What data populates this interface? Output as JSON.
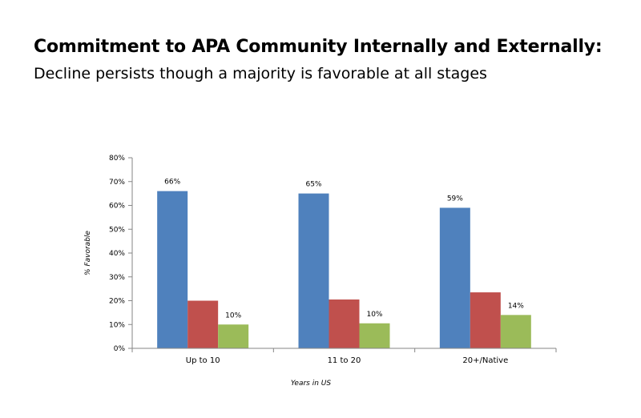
{
  "title": "Commitment to APA Community Internally and Externally:",
  "subtitle": "Decline persists though a majority is favorable at all stages",
  "chart_data": {
    "type": "bar",
    "categories": [
      "Up to 10",
      "11 to 20",
      "20+/Native"
    ],
    "series": [
      {
        "color": "#4f81bd",
        "values": [
          66,
          65,
          59
        ],
        "labels": [
          "66%",
          "65%",
          "59%"
        ]
      },
      {
        "color": "#c0504d",
        "values": [
          20,
          20.5,
          23.5
        ],
        "labels": [
          null,
          null,
          null
        ]
      },
      {
        "color": "#9bbb59",
        "values": [
          10,
          10.5,
          14
        ],
        "labels": [
          "10%",
          "10%",
          "14%"
        ]
      }
    ],
    "ylim": [
      0,
      80
    ],
    "yticks": [
      "0%",
      "10%",
      "20%",
      "30%",
      "40%",
      "50%",
      "60%",
      "70%",
      "80%"
    ],
    "xlabel": "Years in US",
    "ylabel": "% Favorable",
    "legend": "none",
    "grid": false
  }
}
